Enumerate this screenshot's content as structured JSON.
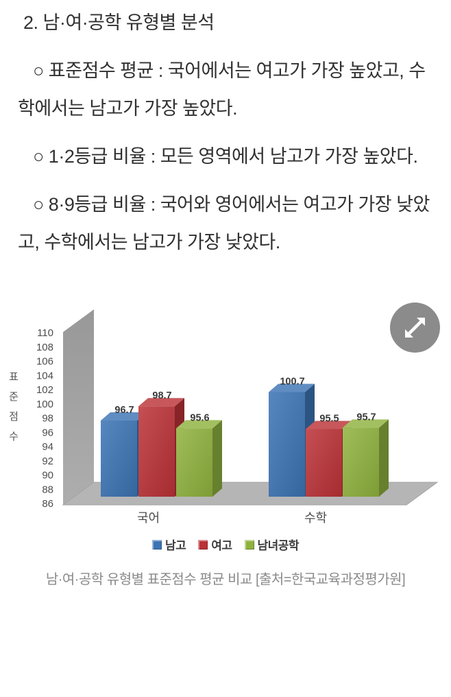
{
  "article": {
    "heading": "2. 남·여·공학 유형별 분석",
    "bullets": [
      "○ 표준점수 평균 : 국어에서는 여고가 가장 높았고, 수학에서는 남고가 가장 높았다.",
      "○ 1·2등급 비율 : 모든 영역에서 남고가 가장 높았다.",
      "○ 8·9등급 비율 : 국어와 영어에서는 여고가 가장 낮았고, 수학에서는 남고가 가장 낮았다."
    ]
  },
  "figure": {
    "expand_icon": "expand-arrows-icon",
    "caption": "남·여·공학 유형별 표준점수 평균 비교 [출처=한국교육과정평가원]"
  },
  "chart_data": {
    "type": "bar",
    "style_3d": true,
    "categories": [
      "국어",
      "수학"
    ],
    "series": [
      {
        "name": "남고",
        "color": "#3c74b4",
        "values": [
          96.7,
          100.7
        ]
      },
      {
        "name": "여고",
        "color": "#bb3237",
        "values": [
          98.7,
          95.5
        ]
      },
      {
        "name": "남녀공학",
        "color": "#8fb23e",
        "values": [
          95.6,
          95.7
        ]
      }
    ],
    "value_labels": [
      [
        "96.7",
        "98.7",
        "95.6"
      ],
      [
        "100.7",
        "95.5",
        "95.7"
      ]
    ],
    "ylabel": "표준점수",
    "ylabel_orientation": "vertical",
    "ylim": [
      86,
      110
    ],
    "ytick_step": 2,
    "yticks": [
      86,
      88,
      90,
      92,
      94,
      96,
      98,
      100,
      102,
      104,
      106,
      108,
      110
    ],
    "grid": false,
    "legend_position": "bottom",
    "wall_color": "#a2a2a2",
    "floor_color": "#b5b5b5",
    "tick_color": "#4d4d4d",
    "value_label_color": "#3a3a3a"
  }
}
